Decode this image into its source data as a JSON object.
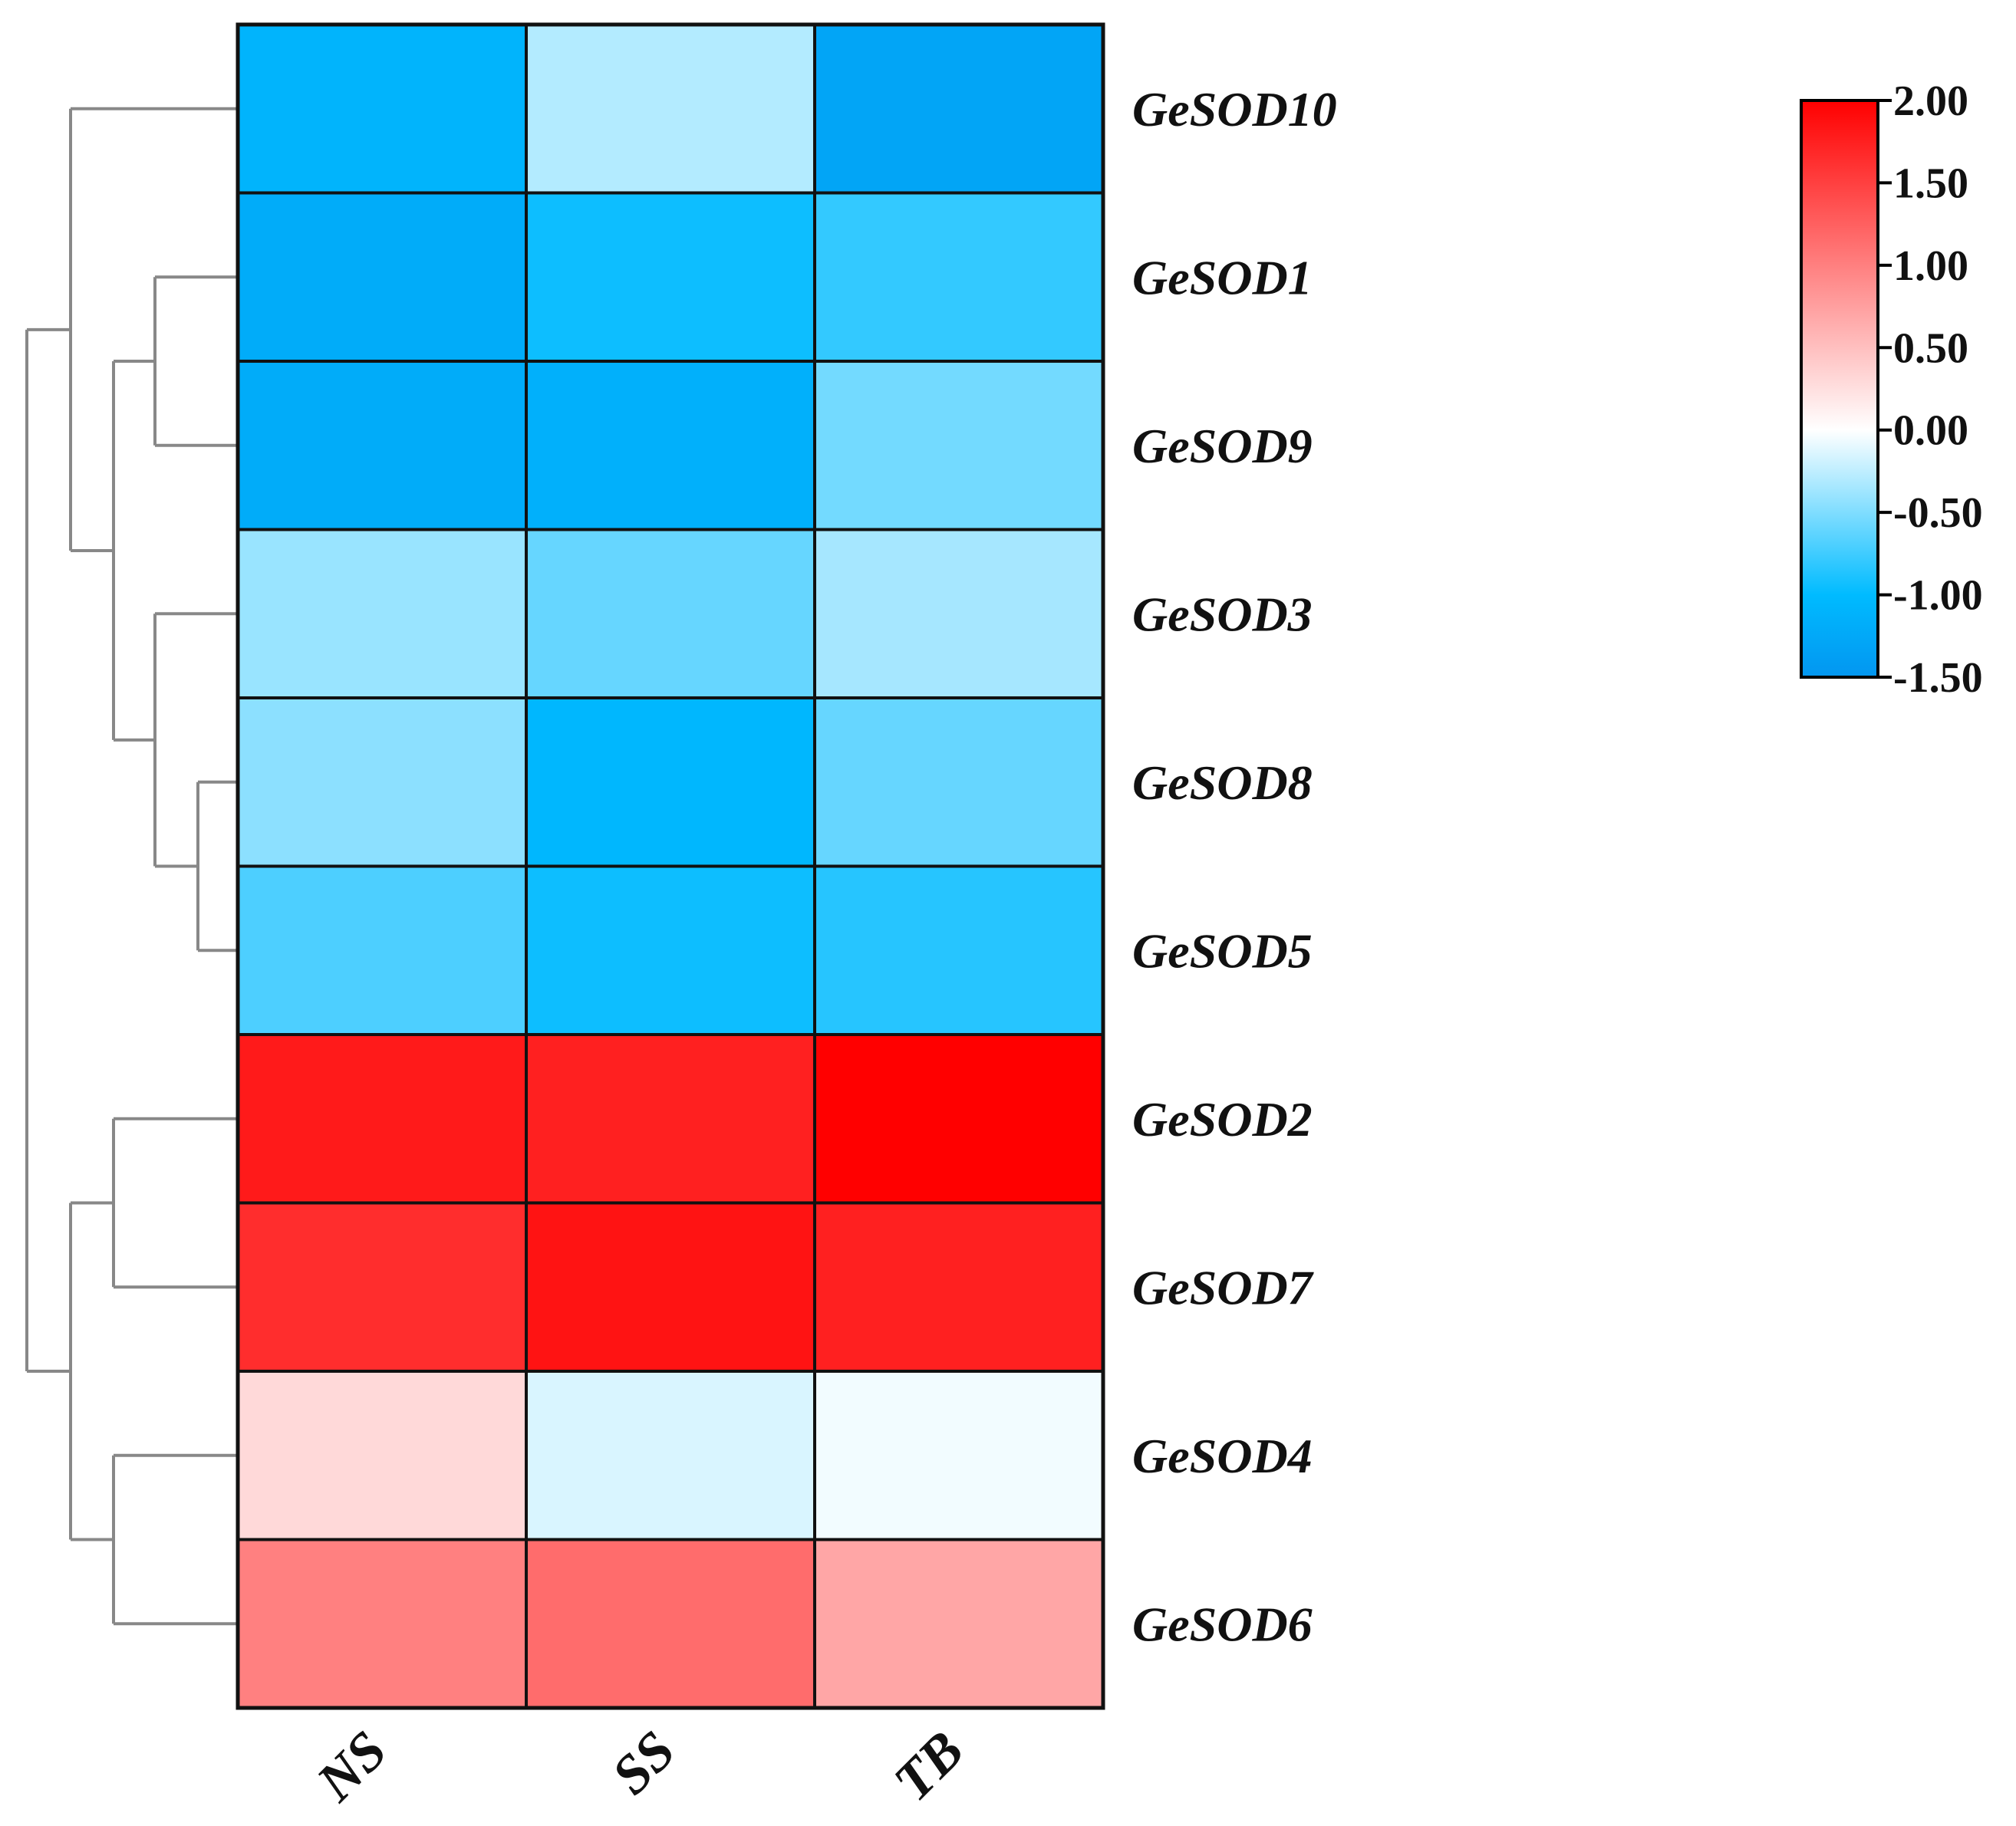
{
  "chart_data": {
    "type": "heatmap",
    "columns": [
      "NS",
      "SS",
      "TB"
    ],
    "rows": [
      "GeSOD10",
      "GeSOD1",
      "GeSOD9",
      "GeSOD3",
      "GeSOD8",
      "GeSOD5",
      "GeSOD2",
      "GeSOD7",
      "GeSOD4",
      "GeSOD6"
    ],
    "values": [
      [
        -1.1,
        -0.3,
        -1.3
      ],
      [
        -1.2,
        -0.95,
        -0.8
      ],
      [
        -1.2,
        -1.15,
        -0.55
      ],
      [
        -0.4,
        -0.6,
        -0.35
      ],
      [
        -0.45,
        -1.05,
        -0.6
      ],
      [
        -0.7,
        -0.95,
        -0.85
      ],
      [
        1.8,
        1.75,
        2.0
      ],
      [
        1.65,
        1.85,
        1.75
      ],
      [
        0.3,
        -0.15,
        -0.05
      ],
      [
        1.0,
        1.15,
        0.7
      ]
    ],
    "color_scale": {
      "min": -1.5,
      "max": 2.0,
      "ticks": [
        "2.00",
        "1.50",
        "1.00",
        "0.50",
        "0.00",
        "-0.50",
        "-1.00",
        "-1.50"
      ],
      "colors": {
        "low": "#0396f0",
        "mid_low": "#00bbff",
        "zero": "#ffffff",
        "high": "#ff0000"
      }
    },
    "dendrogram": "left",
    "legend_placement": "top-right"
  }
}
